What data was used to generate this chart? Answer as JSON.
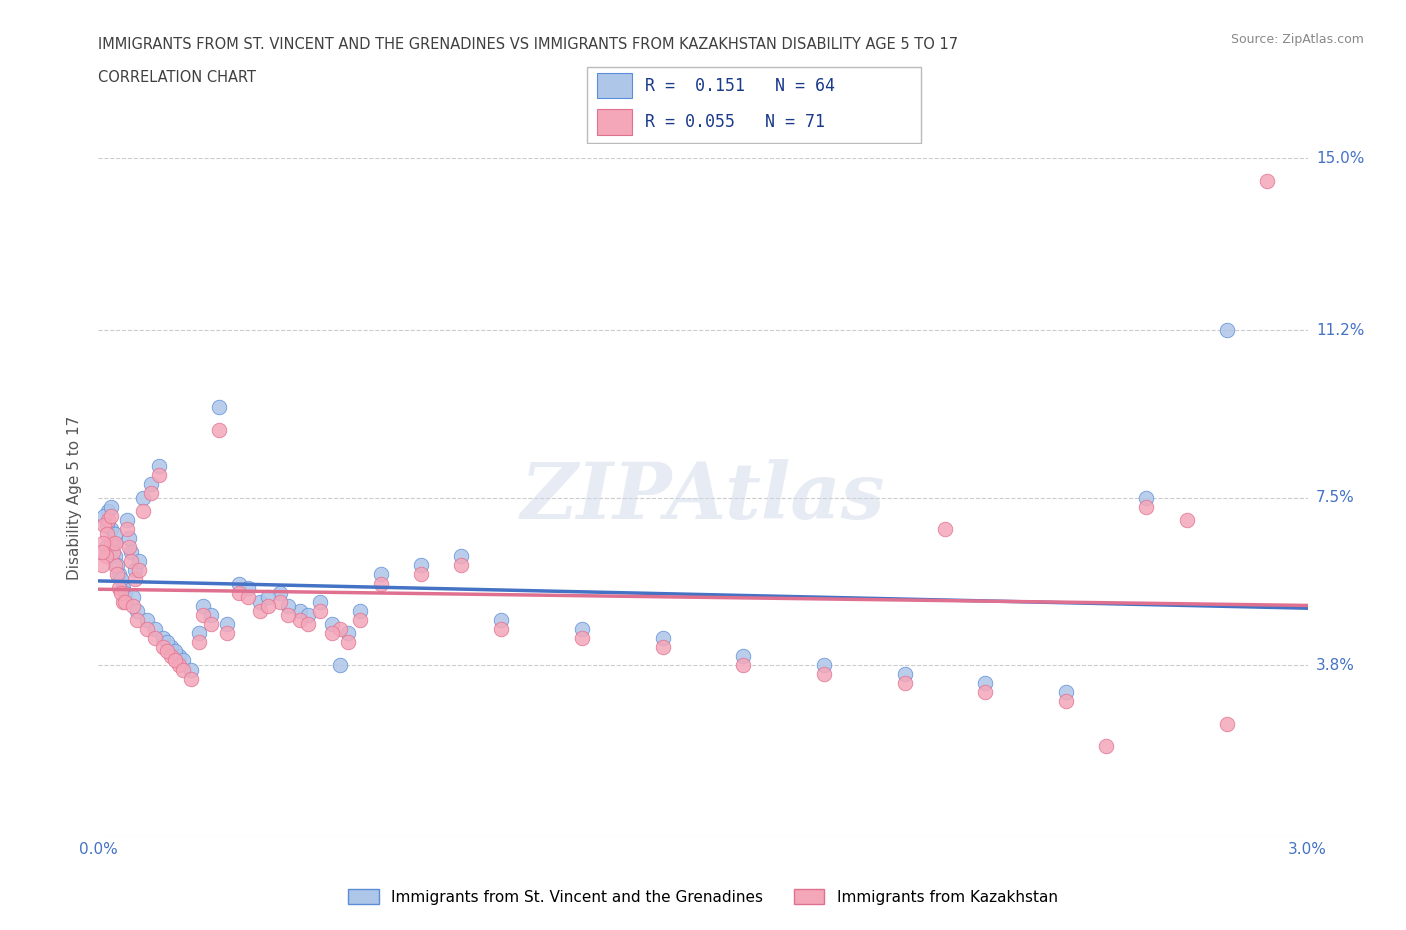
{
  "title_line1": "IMMIGRANTS FROM ST. VINCENT AND THE GRENADINES VS IMMIGRANTS FROM KAZAKHSTAN DISABILITY AGE 5 TO 17",
  "title_line2": "CORRELATION CHART",
  "source_text": "Source: ZipAtlas.com",
  "ylabel": "Disability Age 5 to 17",
  "x_min": 0.0,
  "x_max": 0.03,
  "y_min": 0.0,
  "y_max": 0.15,
  "y_ticks": [
    0.0,
    0.038,
    0.075,
    0.112,
    0.15
  ],
  "y_tick_labels": [
    "",
    "3.8%",
    "7.5%",
    "11.2%",
    "15.0%"
  ],
  "x_tick_labels": [
    "0.0%",
    "3.0%"
  ],
  "series1_label": "Immigrants from St. Vincent and the Grenadines",
  "series2_label": "Immigrants from Kazakhstan",
  "series1_color": "#aec6e8",
  "series2_color": "#f4a7b9",
  "series1_edge_color": "#5b8dd9",
  "series2_edge_color": "#e07090",
  "series1_line_color": "#4472c4",
  "series2_line_color": "#e07090",
  "legend_text1": "R =  0.151   N = 64",
  "legend_text2": "R = 0.055   N = 71",
  "watermark": "ZIPAtlas",
  "title_color": "#404040",
  "tick_color": "#4472c4",
  "grid_color": "#cccccc",
  "source_color": "#888888",
  "series1_x": [
    0.0004,
    0.0003,
    0.0005,
    0.00035,
    0.0006,
    0.00025,
    0.00045,
    0.00055,
    0.0007,
    0.0008,
    0.0009,
    0.001,
    0.00065,
    0.00075,
    0.00085,
    0.00095,
    0.0011,
    0.0013,
    0.0015,
    0.0002,
    0.00015,
    0.00022,
    0.00032,
    0.00042,
    0.0012,
    0.0014,
    0.0016,
    0.0018,
    0.002,
    0.003,
    0.004,
    0.005,
    0.006,
    0.007,
    0.008,
    0.009,
    0.01,
    0.012,
    0.014,
    0.016,
    0.018,
    0.02,
    0.022,
    0.024,
    0.0035,
    0.0045,
    0.0055,
    0.0065,
    0.0025,
    0.0017,
    0.0019,
    0.0021,
    0.0023,
    0.0026,
    0.0028,
    0.0032,
    0.0037,
    0.0042,
    0.0047,
    0.0052,
    0.0058,
    0.0062,
    0.026,
    0.028
  ],
  "series1_y": [
    0.062,
    0.068,
    0.058,
    0.065,
    0.055,
    0.072,
    0.06,
    0.057,
    0.07,
    0.063,
    0.059,
    0.061,
    0.054,
    0.066,
    0.053,
    0.05,
    0.075,
    0.078,
    0.082,
    0.064,
    0.071,
    0.069,
    0.073,
    0.067,
    0.048,
    0.046,
    0.044,
    0.042,
    0.04,
    0.095,
    0.052,
    0.05,
    0.038,
    0.058,
    0.06,
    0.062,
    0.048,
    0.046,
    0.044,
    0.04,
    0.038,
    0.036,
    0.034,
    0.032,
    0.056,
    0.054,
    0.052,
    0.05,
    0.045,
    0.043,
    0.041,
    0.039,
    0.037,
    0.051,
    0.049,
    0.047,
    0.055,
    0.053,
    0.051,
    0.049,
    0.047,
    0.045,
    0.075,
    0.112
  ],
  "series2_x": [
    0.0004,
    0.0003,
    0.0005,
    0.00035,
    0.0006,
    0.00025,
    0.00045,
    0.00055,
    0.0007,
    0.0008,
    0.0009,
    0.001,
    0.00065,
    0.00075,
    0.00085,
    0.00095,
    0.0011,
    0.0013,
    0.0015,
    0.0002,
    0.00015,
    0.00022,
    0.00032,
    0.00042,
    0.0012,
    0.0014,
    0.0016,
    0.0018,
    0.002,
    0.003,
    0.004,
    0.005,
    0.006,
    0.007,
    0.008,
    0.009,
    0.01,
    0.012,
    0.014,
    0.016,
    0.018,
    0.02,
    0.022,
    0.024,
    0.0035,
    0.0045,
    0.0055,
    0.0065,
    0.0025,
    0.0017,
    0.0019,
    0.0021,
    0.0023,
    0.0026,
    0.0028,
    0.0032,
    0.0037,
    0.0042,
    0.0047,
    0.0052,
    0.0058,
    0.0062,
    0.026,
    0.028,
    0.0001,
    0.00012,
    0.029,
    8e-05,
    0.021,
    0.025,
    0.027
  ],
  "series2_y": [
    0.06,
    0.065,
    0.055,
    0.063,
    0.052,
    0.07,
    0.058,
    0.054,
    0.068,
    0.061,
    0.057,
    0.059,
    0.052,
    0.064,
    0.051,
    0.048,
    0.072,
    0.076,
    0.08,
    0.062,
    0.069,
    0.067,
    0.071,
    0.065,
    0.046,
    0.044,
    0.042,
    0.04,
    0.038,
    0.09,
    0.05,
    0.048,
    0.046,
    0.056,
    0.058,
    0.06,
    0.046,
    0.044,
    0.042,
    0.038,
    0.036,
    0.034,
    0.032,
    0.03,
    0.054,
    0.052,
    0.05,
    0.048,
    0.043,
    0.041,
    0.039,
    0.037,
    0.035,
    0.049,
    0.047,
    0.045,
    0.053,
    0.051,
    0.049,
    0.047,
    0.045,
    0.043,
    0.073,
    0.025,
    0.06,
    0.065,
    0.145,
    0.063,
    0.068,
    0.02,
    0.07
  ]
}
